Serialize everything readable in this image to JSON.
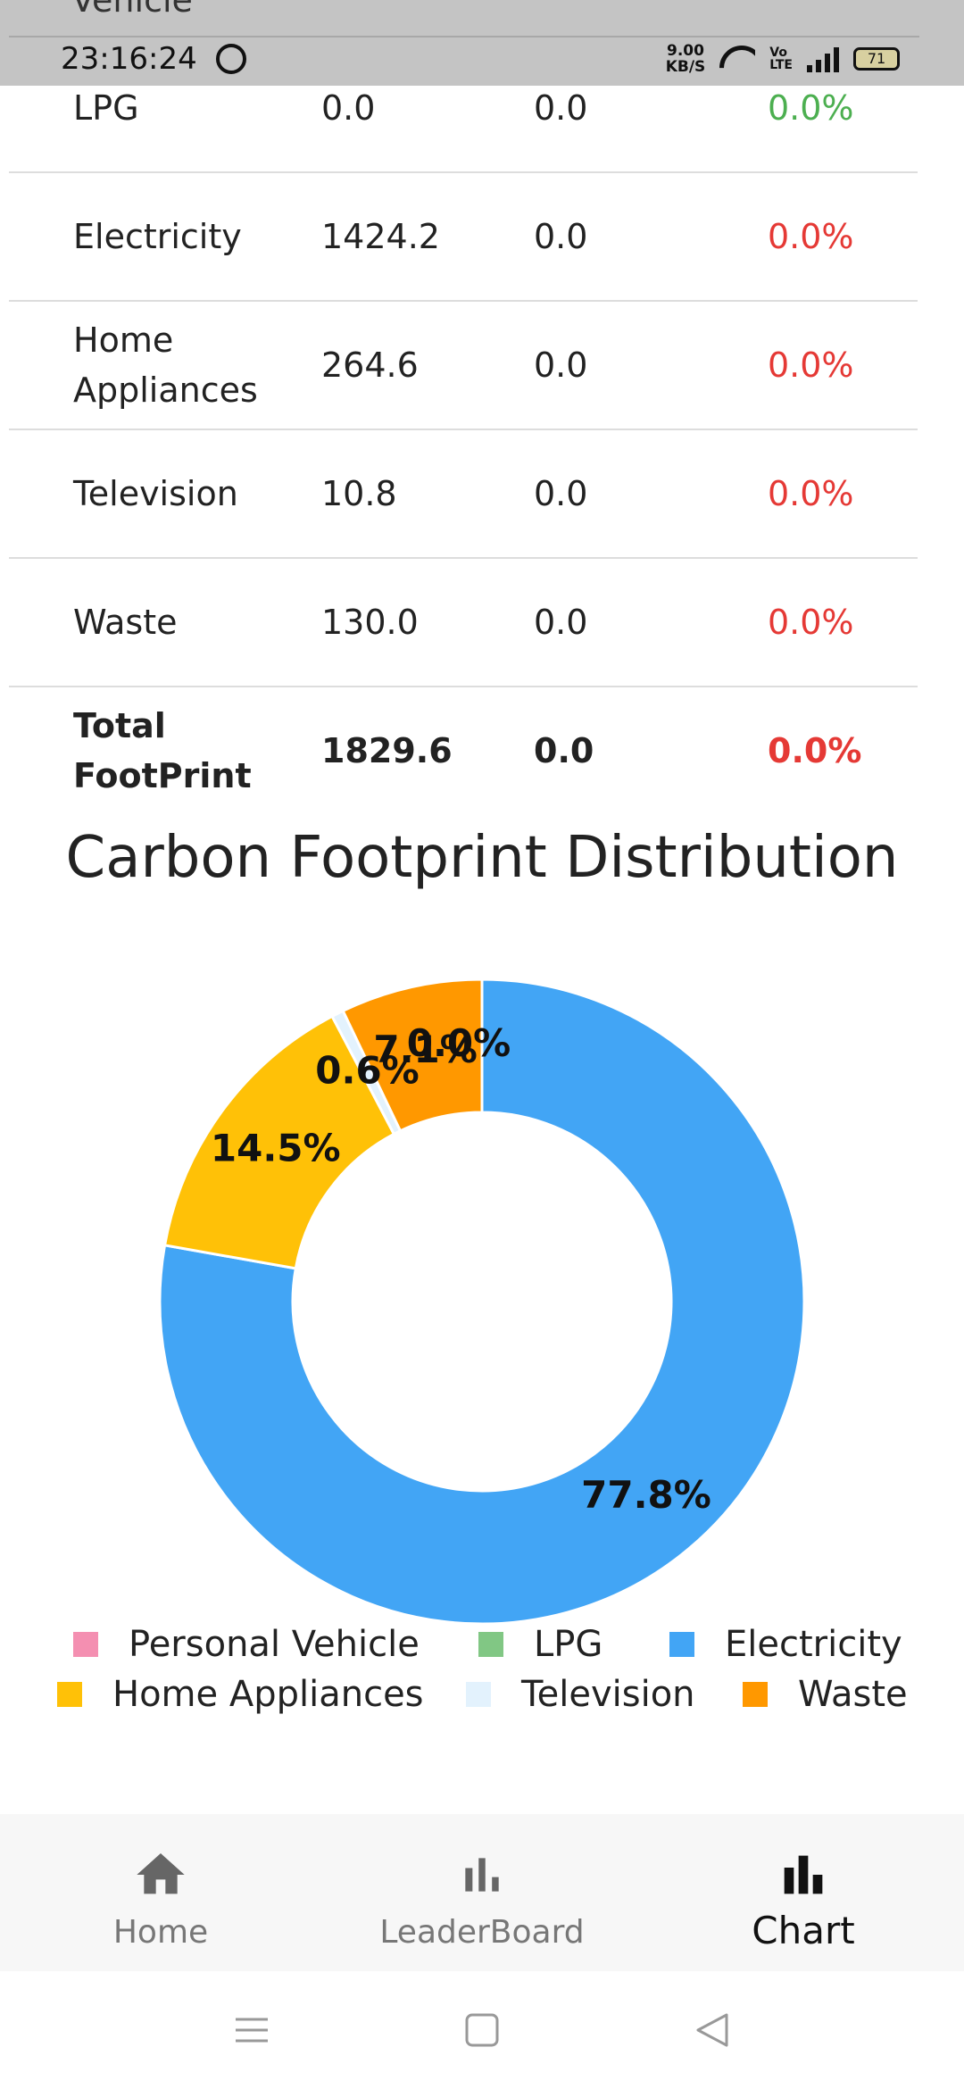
{
  "status_bar": {
    "peek_text": "Vehicle",
    "time": "23:16:24",
    "net_speed_value": "9.00",
    "net_speed_unit": "KB/S",
    "volte_top": "Vo",
    "volte_bottom": "LTE",
    "battery": "71"
  },
  "table": {
    "rows": [
      {
        "category": "LPG",
        "footprint": "0.0",
        "change": "0.0",
        "percent": "0.0%",
        "percent_color": "#4caf50"
      },
      {
        "category": "Electricity",
        "footprint": "1424.2",
        "change": "0.0",
        "percent": "0.0%",
        "percent_color": "#e53935"
      },
      {
        "category": "Home Appliances",
        "footprint": "264.6",
        "change": "0.0",
        "percent": "0.0%",
        "percent_color": "#e53935"
      },
      {
        "category": "Television",
        "footprint": "10.8",
        "change": "0.0",
        "percent": "0.0%",
        "percent_color": "#e53935"
      },
      {
        "category": "Waste",
        "footprint": "130.0",
        "change": "0.0",
        "percent": "0.0%",
        "percent_color": "#e53935"
      }
    ],
    "total": {
      "category": "Total FootPrint",
      "footprint": "1829.6",
      "change": "0.0",
      "percent": "0.0%"
    }
  },
  "chart_data": {
    "type": "pie",
    "title": "Carbon Footprint Distribution",
    "legend_position": "bottom",
    "donut": true,
    "start_angle_deg": 90,
    "slices": [
      {
        "name": "Personal Vehicle",
        "value": 0.0,
        "label": "0.0%",
        "color": "#f48fb1"
      },
      {
        "name": "LPG",
        "value": 0.0,
        "label": "",
        "color": "#81c784"
      },
      {
        "name": "Electricity",
        "value": 77.8,
        "label": "77.8%",
        "color": "#42a5f5"
      },
      {
        "name": "Home Appliances",
        "value": 14.5,
        "label": "14.5%",
        "color": "#ffc107"
      },
      {
        "name": "Television",
        "value": 0.6,
        "label": "0.6%",
        "color": "#e3f2fd"
      },
      {
        "name": "Waste",
        "value": 7.1,
        "label": "7.1%",
        "color": "#ff9800"
      }
    ]
  },
  "bottom_nav": {
    "items": [
      {
        "label": "Home",
        "icon": "home-icon"
      },
      {
        "label": "LeaderBoard",
        "icon": "leaderboard-icon"
      },
      {
        "label": "Chart",
        "icon": "chart-icon"
      }
    ],
    "active": "Chart"
  },
  "system_nav": {
    "icons": [
      "menu-icon",
      "home-square-icon",
      "back-triangle-icon"
    ]
  }
}
